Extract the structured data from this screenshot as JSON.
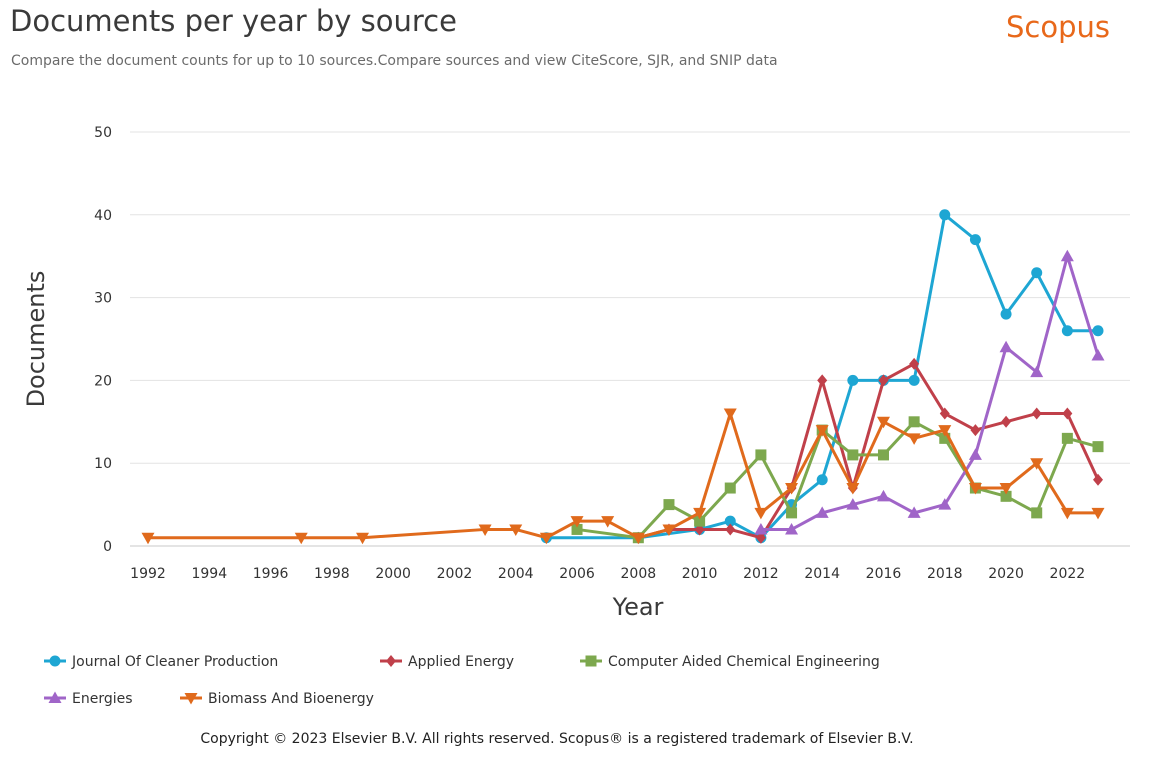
{
  "header": {
    "title": "Documents per year by source",
    "subtitle": "Compare the document counts for up to 10 sources.Compare sources and view CiteScore, SJR, and SNIP data",
    "brand": "Scopus"
  },
  "footer": {
    "copyright": "Copyright © 2023 Elsevier B.V. All rights reserved. Scopus® is a registered trademark of Elsevier B.V."
  },
  "chart_data": {
    "type": "line",
    "xlabel": "Year",
    "ylabel": "Documents",
    "xlim": [
      1992,
      2023
    ],
    "ylim": [
      0,
      50
    ],
    "x_ticks": [
      "1992",
      "1994",
      "1996",
      "1998",
      "2000",
      "2002",
      "2004",
      "2006",
      "2008",
      "2010",
      "2012",
      "2014",
      "2016",
      "2018",
      "2020",
      "2022"
    ],
    "y_ticks": [
      "0",
      "10",
      "20",
      "30",
      "40",
      "50"
    ],
    "grid": true,
    "legend_position": "bottom",
    "series": [
      {
        "name": "Journal Of Cleaner Production",
        "color": "#1ea6d3",
        "marker": "circle",
        "points": [
          [
            2005,
            1
          ],
          [
            2008,
            1
          ],
          [
            2010,
            2
          ],
          [
            2011,
            3
          ],
          [
            2012,
            1
          ],
          [
            2013,
            5
          ],
          [
            2014,
            8
          ],
          [
            2015,
            20
          ],
          [
            2016,
            20
          ],
          [
            2017,
            20
          ],
          [
            2018,
            40
          ],
          [
            2019,
            37
          ],
          [
            2020,
            28
          ],
          [
            2021,
            33
          ],
          [
            2022,
            26
          ],
          [
            2023,
            26
          ]
        ]
      },
      {
        "name": "Applied Energy",
        "color": "#c0404a",
        "marker": "diamond",
        "points": [
          [
            2008,
            1
          ],
          [
            2009,
            2
          ],
          [
            2010,
            2
          ],
          [
            2011,
            2
          ],
          [
            2012,
            1
          ],
          [
            2013,
            7
          ],
          [
            2014,
            20
          ],
          [
            2015,
            7
          ],
          [
            2016,
            20
          ],
          [
            2017,
            22
          ],
          [
            2018,
            16
          ],
          [
            2019,
            14
          ],
          [
            2020,
            15
          ],
          [
            2021,
            16
          ],
          [
            2022,
            16
          ],
          [
            2023,
            8
          ]
        ]
      },
      {
        "name": "Computer Aided Chemical Engineering",
        "color": "#7da84e",
        "marker": "square",
        "points": [
          [
            2006,
            2
          ],
          [
            2008,
            1
          ],
          [
            2009,
            5
          ],
          [
            2010,
            3
          ],
          [
            2011,
            7
          ],
          [
            2012,
            11
          ],
          [
            2013,
            4
          ],
          [
            2014,
            14
          ],
          [
            2015,
            11
          ],
          [
            2016,
            11
          ],
          [
            2017,
            15
          ],
          [
            2018,
            13
          ],
          [
            2019,
            7
          ],
          [
            2020,
            6
          ],
          [
            2021,
            4
          ],
          [
            2022,
            13
          ],
          [
            2023,
            12
          ]
        ]
      },
      {
        "name": "Energies",
        "color": "#a065c8",
        "marker": "triangle-up",
        "points": [
          [
            2012,
            2
          ],
          [
            2013,
            2
          ],
          [
            2014,
            4
          ],
          [
            2015,
            5
          ],
          [
            2016,
            6
          ],
          [
            2017,
            4
          ],
          [
            2018,
            5
          ],
          [
            2019,
            11
          ],
          [
            2020,
            24
          ],
          [
            2021,
            21
          ],
          [
            2022,
            35
          ],
          [
            2023,
            23
          ]
        ]
      },
      {
        "name": "Biomass And Bioenergy",
        "color": "#e06a1c",
        "marker": "triangle-down",
        "points": [
          [
            1992,
            1
          ],
          [
            1997,
            1
          ],
          [
            1999,
            1
          ],
          [
            2003,
            2
          ],
          [
            2004,
            2
          ],
          [
            2005,
            1
          ],
          [
            2006,
            3
          ],
          [
            2007,
            3
          ],
          [
            2008,
            1
          ],
          [
            2009,
            2
          ],
          [
            2010,
            4
          ],
          [
            2011,
            16
          ],
          [
            2012,
            4
          ],
          [
            2013,
            7
          ],
          [
            2014,
            14
          ],
          [
            2015,
            7
          ],
          [
            2016,
            15
          ],
          [
            2017,
            13
          ],
          [
            2018,
            14
          ],
          [
            2019,
            7
          ],
          [
            2020,
            7
          ],
          [
            2021,
            10
          ],
          [
            2022,
            4
          ],
          [
            2023,
            4
          ]
        ]
      }
    ]
  }
}
